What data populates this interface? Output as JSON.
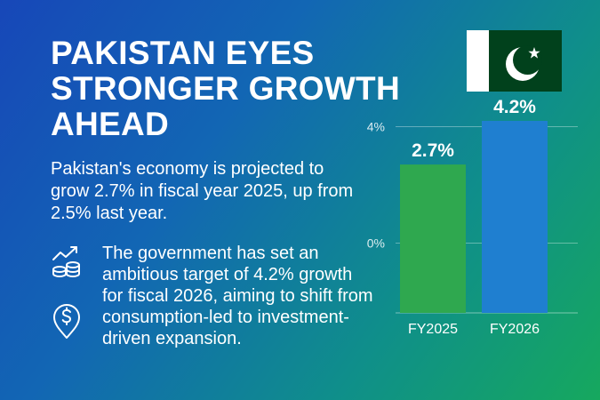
{
  "headline": {
    "line1": "PAKISTAN EYES",
    "line2": "STRONGER GROWTH",
    "line3": "AHEAD"
  },
  "summary": "Pakistan's economy is projected to grow 2.7% in fiscal year 2025, up from 2.5% last year.",
  "detail": "The government has set an ambitious target of 4.2% growth for fiscal 2026, aiming to shift from consumption-led to investment-driven expansion.",
  "icons": [
    "growth-chart-coins-icon",
    "dollar-location-pin-icon"
  ],
  "flag": "pakistan-flag",
  "colors": {
    "flag_green": "#01411C",
    "bar_fy2025": "#2fa84f",
    "bar_fy2026": "#1f7fd0"
  },
  "chart_data": {
    "type": "bar",
    "categories": [
      "FY2025",
      "FY2026"
    ],
    "values": [
      2.7,
      4.2
    ],
    "data_labels": [
      "2.7%",
      "4.2%"
    ],
    "y_ticks": [
      {
        "value": 0,
        "label": "0%"
      },
      {
        "value": 4,
        "label": "4%"
      }
    ],
    "ylim": [
      -2.4,
      4.2
    ],
    "grid": true
  }
}
